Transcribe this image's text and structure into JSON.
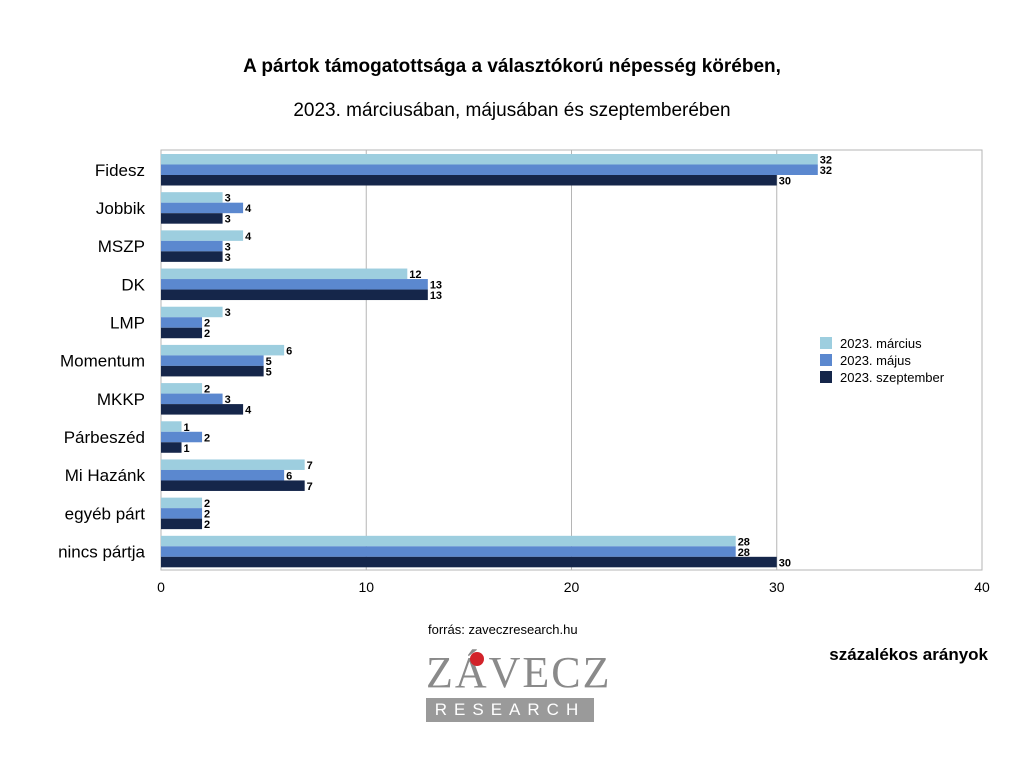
{
  "page": {
    "title_line1": "A pártok támogatottsága a választókorú népesség körében,",
    "title_line2": "2023. márciusában, májusában és szeptemberében",
    "source": "forrás: zaveczresearch.hu",
    "unit_note": "százalékos arányok",
    "logo_word": "ZÁVECZ",
    "logo_sub": "RESEARCH"
  },
  "chart_data": {
    "type": "bar",
    "orientation": "horizontal",
    "categories": [
      "Fidesz",
      "Jobbik",
      "MSZP",
      "DK",
      "LMP",
      "Momentum",
      "MKKP",
      "Párbeszéd",
      "Mi Hazánk",
      "egyéb párt",
      "nincs pártja"
    ],
    "series": [
      {
        "name": "2023. március",
        "color": "#9dcedf",
        "values": [
          32,
          3,
          4,
          12,
          3,
          6,
          2,
          1,
          7,
          2,
          28
        ]
      },
      {
        "name": "2023. május",
        "color": "#5b88cf",
        "values": [
          32,
          4,
          3,
          13,
          2,
          5,
          3,
          2,
          6,
          2,
          28
        ]
      },
      {
        "name": "2023. szeptember",
        "color": "#15264a",
        "values": [
          30,
          3,
          3,
          13,
          2,
          5,
          4,
          1,
          7,
          2,
          30
        ]
      }
    ],
    "xlim": [
      0,
      40
    ],
    "xticks": [
      0,
      10,
      20,
      30,
      40
    ],
    "grid": true,
    "legend_position": "right",
    "data_labels": true
  }
}
